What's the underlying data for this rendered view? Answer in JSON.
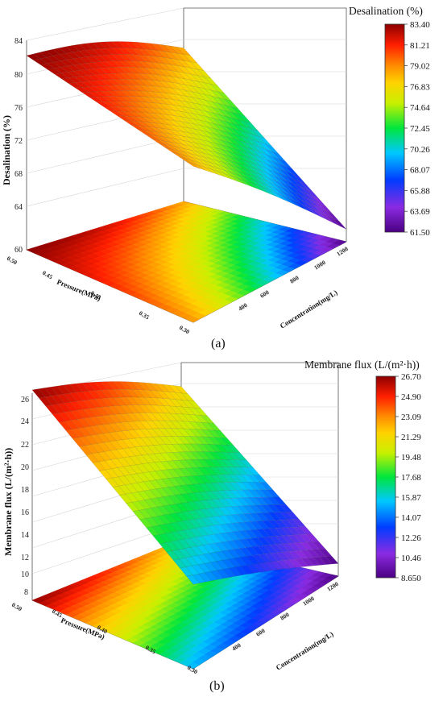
{
  "chart_data": [
    {
      "panel": "a",
      "type": "surface",
      "zlabel": "Desalination (%)",
      "xlabel": "Pressure(MPa)",
      "ylabel": "Concentration(mg/L)",
      "x_ticks": [
        "0.50",
        "0.45",
        "0.40",
        "0.35",
        "0.30"
      ],
      "y_ticks": [
        "400",
        "600",
        "800",
        "1000",
        "1200"
      ],
      "z_ticks": [
        "84",
        "80",
        "76",
        "72",
        "68",
        "64",
        "60"
      ],
      "zlim": [
        60,
        84
      ],
      "colorbar_title": "Desalination (%)",
      "colorbar_ticks": [
        "83.40",
        "81.21",
        "79.02",
        "76.83",
        "74.64",
        "72.45",
        "70.26",
        "68.07",
        "65.88",
        "63.69",
        "61.50"
      ],
      "colorbar_range": [
        61.5,
        83.4
      ],
      "corners": {
        "p050_c200": 83.4,
        "p050_c1200": 78.5,
        "p030_c200": 78.8,
        "p030_c1200": 61.5
      }
    },
    {
      "panel": "b",
      "type": "surface",
      "zlabel": "Membrane flux (L/(m²·h))",
      "xlabel": "Pressure(MPa)",
      "ylabel": "Concentration(mg/L)",
      "x_ticks": [
        "0.50",
        "0.45",
        "0.40",
        "0.35",
        "0.30"
      ],
      "y_ticks": [
        "400",
        "600",
        "800",
        "1000",
        "1200"
      ],
      "z_ticks": [
        "26",
        "24",
        "22",
        "20",
        "18",
        "16",
        "14",
        "12",
        "10",
        "8"
      ],
      "zlim": [
        7.5,
        26.7
      ],
      "colorbar_title": "Membrane flux (L/(m²·h))",
      "colorbar_ticks": [
        "26.70",
        "24.90",
        "23.09",
        "21.29",
        "19.48",
        "17.68",
        "15.87",
        "14.07",
        "12.26",
        "10.46",
        "8.650"
      ],
      "colorbar_range": [
        8.65,
        26.7
      ],
      "corners": {
        "p050_c200": 26.7,
        "p050_c1200": 21.5,
        "p030_c200": 15.2,
        "p030_c1200": 8.65
      }
    }
  ],
  "panel_labels": {
    "a": "(a)",
    "b": "(b)"
  }
}
